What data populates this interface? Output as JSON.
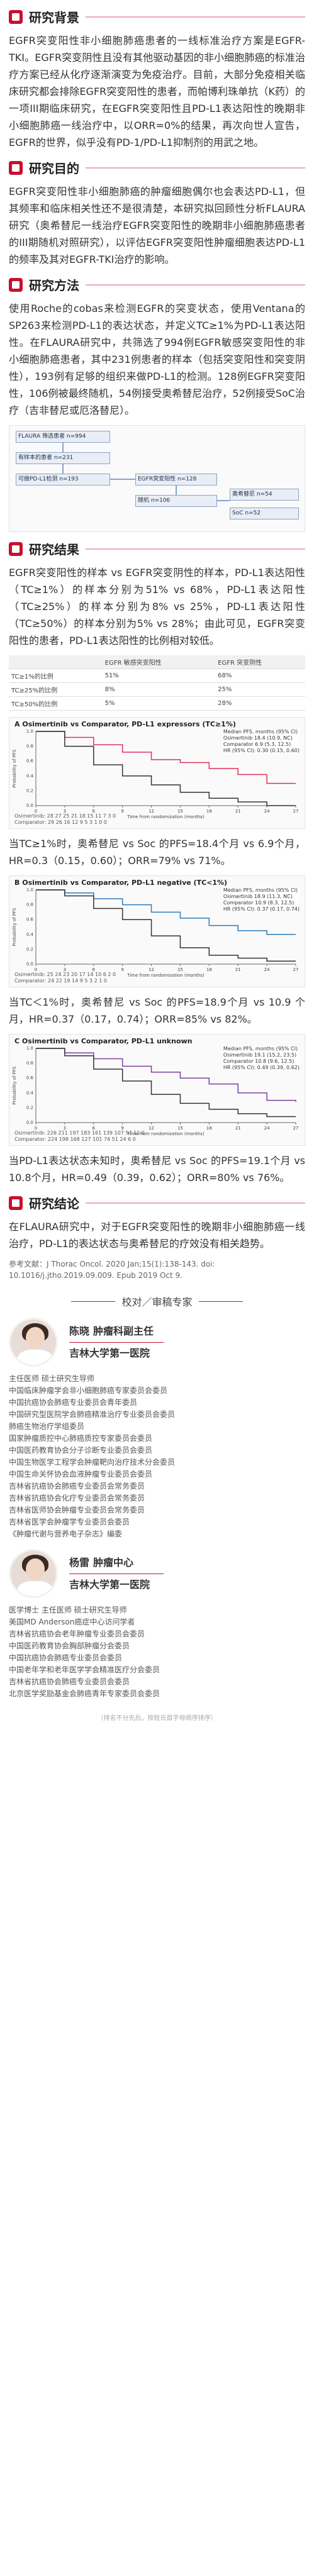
{
  "sections": {
    "background": {
      "title": "研究背景",
      "text": "EGFR突变阳性非小细胞肺癌患者的一线标准治疗方案是EGFR-TKI。EGFR突变阴性且没有其他驱动基因的非小细胞肺癌的标准治疗方案已经从化疗逐渐演变为免疫治疗。目前，大部分免疫相关临床研究都会排除EGFR突变阳性的患者，而帕博利珠单抗（K药）的一项III期临床研究，在EGFR突变阳性且PD-L1表达阳性的晚期非小细胞肺癌一线治疗中，以ORR=0%的结果，再次向世人宣告，EGFR的世界，似乎没有PD-1/PD-L1抑制剂的用武之地。"
    },
    "purpose": {
      "title": "研究目的",
      "text": "EGFR突变阳性非小细胞肺癌的肿瘤细胞偶尔也会表达PD-L1，但其频率和临床相关性还不是很清楚，本研究拟回顾性分析FLAURA研究（奥希替尼一线治疗EGFR突变阳性的晚期非小细胞肺癌患者的III期随机对照研究），以评估EGFR突变阳性肿瘤细胞表达PD-L1的频率及其对EGFR-TKI治疗的影响。"
    },
    "methods": {
      "title": "研究方法",
      "text": "使用Roche的cobas来检测EGFR的突变状态，使用Ventana的SP263来检测PD-L1的表达状态，并定义TC≥1%为PD-L1表达阳性。在FLAURA研究中，共筛选了994例EGFR敏感突变阳性的非小细胞肺癌患者，其中231例患者的样本（包括突变阳性和突变阴性），193例有足够的组织来做PD-L1的检测。128例EGFR突变阳性，106例被最终随机，54例接受奥希替尼治疗，52例接受SoC治疗（吉非替尼或厄洛替尼）。"
    },
    "results": {
      "title": "研究结果",
      "text1": "EGFR突变阳性的样本 vs EGFR突变阴性的样本，PD-L1表达阳性（TC≥1%）的样本分别为51% vs 68%，PD-L1表达阳性（TC≥25%）的样本分别为8% vs 25%，PD-L1表达阳性（TC≥50%）的样本分别为5% vs 28%；由此可见，EGFR突变阳性的患者，PD-L1表达阳性的比例相对较低。",
      "text2": "当TC≥1%时，奥希替尼 vs Soc 的PFS=18.4个月 vs 6.9个月，HR=0.3（0.15，0.60）；ORR=79% vs 71%。",
      "text3": "当TC＜1%时，奥希替尼 vs Soc 的PFS=18.9个月 vs 10.9 个月，HR=0.37（0.17，0.74）；ORR=85% vs 82%。",
      "text4": "当PD-L1表达状态未知时，奥希替尼 vs Soc 的PFS=19.1个月 vs 10.8个月，HR=0.49（0.39，0.62）；ORR=80% vs 76%。"
    },
    "conclusion": {
      "title": "研究结论",
      "text": "在FLAURA研究中，对于EGFR突变阳性的晚期非小细胞肺癌一线治疗，PD-L1的表达状态与奥希替尼的疗效没有相关趋势。"
    }
  },
  "table": {
    "headers": [
      "",
      "EGFR 敏感突变阳性",
      "EGFR 突变阴性"
    ],
    "rows": [
      [
        "TC≥1%的比例",
        "51%",
        "68%"
      ],
      [
        "TC≥25%的比例",
        "8%",
        "25%"
      ],
      [
        "TC≥50%的比例",
        "5%",
        "28%"
      ]
    ]
  },
  "flowchart": {
    "boxes": [
      "FLAURA 筛选患者 n=994",
      "有样本的患者 n=231",
      "可做PD-L1检测 n=193",
      "EGFR突变阳性 n=128",
      "随机 n=106",
      "奥希替尼 n=54",
      "SoC n=52"
    ]
  },
  "chart_data": [
    {
      "type": "line",
      "title": "Osimertinib vs Comparator, PD-L1 expressors (TC≥1%)",
      "panel": "A",
      "xlabel": "Time from randomization (months)",
      "ylabel": "Probability of PFS",
      "xlim": [
        0,
        27
      ],
      "ylim": [
        0,
        1.0
      ],
      "legend_title": "Median PFS, months (95% CI)",
      "series": [
        {
          "name": "Osimertinib",
          "median_text": "18.4 (10.9, NC)",
          "color": "#e0305a",
          "x": [
            0,
            3,
            6,
            9,
            12,
            15,
            18,
            21,
            24,
            27
          ],
          "y": [
            1.0,
            0.92,
            0.82,
            0.72,
            0.62,
            0.58,
            0.5,
            0.42,
            0.3,
            0.3
          ]
        },
        {
          "name": "Comparator",
          "median_text": "6.9 (5.3, 12.5)",
          "color": "#333333",
          "x": [
            0,
            3,
            6,
            9,
            12,
            15,
            18,
            21,
            24,
            27
          ],
          "y": [
            1.0,
            0.8,
            0.55,
            0.4,
            0.28,
            0.18,
            0.1,
            0.05,
            0.0,
            0.0
          ]
        }
      ],
      "hr_text": "HR (95% CI): 0.30 (0.15, 0.60)",
      "risk_rows": [
        {
          "name": "Osimertinib",
          "values": [
            "28",
            "27",
            "25",
            "21",
            "18",
            "15",
            "11",
            "7",
            "3",
            "0"
          ]
        },
        {
          "name": "Comparator",
          "values": [
            "29",
            "26",
            "16",
            "12",
            "9",
            "5",
            "3",
            "1",
            "0",
            "0"
          ]
        }
      ],
      "ticks_x": [
        "0",
        "3",
        "6",
        "9",
        "12",
        "15",
        "18",
        "21",
        "24",
        "27"
      ]
    },
    {
      "type": "line",
      "title": "Osimertinib vs Comparator, PD-L1 negative (TC<1%)",
      "panel": "B",
      "xlabel": "Time from randomization (months)",
      "ylabel": "Probability of PFS",
      "xlim": [
        0,
        27
      ],
      "ylim": [
        0,
        1.0
      ],
      "legend_title": "Median PFS, months (95% CI)",
      "series": [
        {
          "name": "Osimertinib",
          "median_text": "18.9 (11.3, NC)",
          "color": "#2c7bb6",
          "x": [
            0,
            3,
            6,
            9,
            12,
            15,
            18,
            21,
            24,
            27
          ],
          "y": [
            1.0,
            0.96,
            0.88,
            0.8,
            0.7,
            0.62,
            0.52,
            0.45,
            0.4,
            0.4
          ]
        },
        {
          "name": "Comparator",
          "median_text": "10.9 (8.3, 12.5)",
          "color": "#333333",
          "x": [
            0,
            3,
            6,
            9,
            12,
            15,
            18,
            21,
            24,
            27
          ],
          "y": [
            1.0,
            0.92,
            0.75,
            0.6,
            0.38,
            0.22,
            0.12,
            0.08,
            0.04,
            0.04
          ]
        }
      ],
      "hr_text": "HR (95% CI): 0.37 (0.17, 0.74)",
      "risk_rows": [
        {
          "name": "Osimertinib",
          "values": [
            "25",
            "24",
            "23",
            "20",
            "17",
            "14",
            "10",
            "6",
            "2",
            "0"
          ]
        },
        {
          "name": "Comparator",
          "values": [
            "24",
            "22",
            "19",
            "14",
            "9",
            "5",
            "3",
            "2",
            "1",
            "0"
          ]
        }
      ],
      "ticks_x": [
        "0",
        "3",
        "6",
        "9",
        "12",
        "15",
        "18",
        "21",
        "24",
        "27"
      ]
    },
    {
      "type": "line",
      "title": "Osimertinib vs Comparator, PD-L1 unknown",
      "panel": "C",
      "xlabel": "Time from randomization (months)",
      "ylabel": "Probability of PFS",
      "xlim": [
        0,
        27
      ],
      "ylim": [
        0,
        1.0
      ],
      "legend_title": "Median PFS, months (95% CI)",
      "series": [
        {
          "name": "Osimertinib",
          "median_text": "19.1 (15.2, 23.5)",
          "color": "#7a3fa0",
          "x": [
            0,
            3,
            6,
            9,
            12,
            15,
            18,
            21,
            24,
            27
          ],
          "y": [
            1.0,
            0.94,
            0.86,
            0.76,
            0.68,
            0.6,
            0.52,
            0.4,
            0.3,
            0.28
          ]
        },
        {
          "name": "Comparator",
          "median_text": "10.8 (9.6, 12.5)",
          "color": "#333333",
          "x": [
            0,
            3,
            6,
            9,
            12,
            15,
            18,
            21,
            24,
            27
          ],
          "y": [
            1.0,
            0.9,
            0.72,
            0.56,
            0.38,
            0.26,
            0.18,
            0.12,
            0.08,
            0.08
          ]
        }
      ],
      "hr_text": "HR (95% CI): 0.49 (0.39, 0.62)",
      "risk_rows": [
        {
          "name": "Osimertinib",
          "values": [
            "226",
            "211",
            "197",
            "183",
            "161",
            "139",
            "107",
            "57",
            "11",
            "0"
          ]
        },
        {
          "name": "Comparator",
          "values": [
            "224",
            "198",
            "168",
            "127",
            "101",
            "74",
            "51",
            "24",
            "6",
            "0"
          ]
        }
      ],
      "ticks_x": [
        "0",
        "3",
        "6",
        "9",
        "12",
        "15",
        "18",
        "21",
        "24",
        "27"
      ]
    }
  ],
  "reference": "参考文献：J Thorac Oncol. 2020 Jan;15(1):138-143. doi: 10.1016/j.jtho.2019.09.009. Epub 2019 Oct 9.",
  "reviewers": {
    "title": "校对／审稿专家",
    "people": [
      {
        "name": "陈晓",
        "role": "肿瘤科副主任",
        "affiliation": "吉林大学第一医院",
        "bio": [
          "主任医师 硕士研究生导师",
          "中国临床肿瘤学会非小细胞肺癌专家委员会委员",
          "中国抗癌协会肺癌专业委员会青年委员",
          "中国研究型医院学会肺癌精准治疗专业委员会委员",
          "肺癌生物治疗学组委员",
          "国家肿瘤质控中心肺癌质控专家委员会委员",
          "中国医药教育协会分子诊断专业委员会委员",
          "中国生物医学工程学会肿瘤靶向治疗技术分会委员",
          "中国生命关怀协会血液肿瘤专业委员会委员",
          "吉林省抗癌协会肺癌专业委员会常务委员",
          "吉林省抗癌协会化疗专业委员会常务委员",
          "吉林省医师协会肿瘤专业委员会常务委员",
          "吉林省医学会肿瘤学专业委员会委员",
          "《肿瘤代谢与营养电子杂志》编委"
        ]
      },
      {
        "name": "杨雷",
        "role": "肿瘤中心",
        "affiliation": "吉林大学第一医院",
        "bio": [
          "医学博士 主任医师 硕士研究生导师",
          "美国MD Anderson癌症中心访问学者",
          "吉林省抗癌协会老年肿瘤专业委员会委员",
          "中国医药教育协会胸部肿瘤分会委员",
          "中国抗癌协会肺癌专业委员会委员",
          "中国老年学和老年医学学会精准医疗分会委员",
          "吉林省抗癌协会肺癌专业委员会委员",
          "北京医学奖励基金会肺癌青年专家委员会委员"
        ]
      }
    ]
  },
  "footnote": "（排名不分先后，按姓氏首字母顺序排序）"
}
